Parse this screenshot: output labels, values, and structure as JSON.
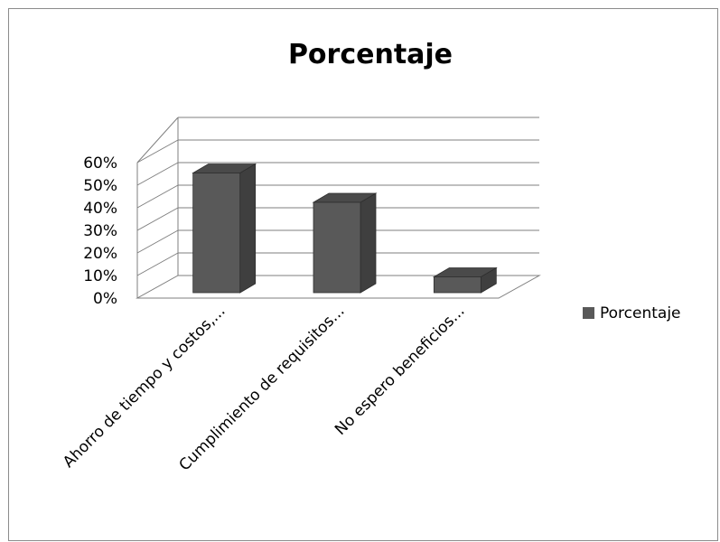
{
  "chart_data": {
    "type": "bar",
    "title": "Porcentaje",
    "categories": [
      "Ahorro de tiempo y costos,...",
      "Cumplimiento de requisitos...",
      "No espero beneficios..."
    ],
    "series": [
      {
        "name": "Porcentaje",
        "values": [
          0.53,
          0.4,
          0.07
        ]
      }
    ],
    "yticks": [
      "0%",
      "10%",
      "20%",
      "30%",
      "40%",
      "50%",
      "60%"
    ],
    "ylim": [
      0,
      0.6
    ],
    "grid": true,
    "legend": "right",
    "colors": {
      "bar_front": "#595959",
      "bar_side": "#3f3f3f",
      "bar_top": "#4a4a4a",
      "grid": "#7f7f7f"
    }
  }
}
